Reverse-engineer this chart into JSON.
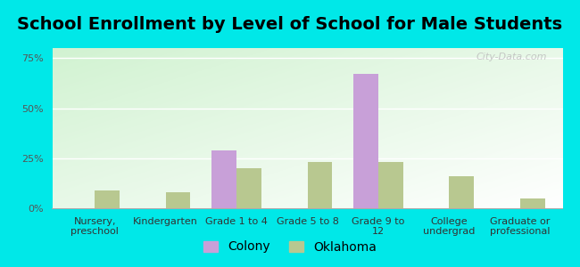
{
  "title": "School Enrollment by Level of School for Male Students",
  "categories": [
    "Nursery,\npreschool",
    "Kindergarten",
    "Grade 1 to 4",
    "Grade 5 to 8",
    "Grade 9 to\n12",
    "College\nundergrad",
    "Graduate or\nprofessional"
  ],
  "colony_values": [
    0,
    0,
    29,
    0,
    67,
    0,
    0
  ],
  "oklahoma_values": [
    9,
    8,
    20,
    23,
    23,
    16,
    5
  ],
  "colony_color": "#c8a0d8",
  "oklahoma_color": "#b8c890",
  "background_color": "#00e8e8",
  "ylim": [
    0,
    80
  ],
  "yticks": [
    0,
    25,
    50,
    75
  ],
  "ytick_labels": [
    "0%",
    "25%",
    "50%",
    "75%"
  ],
  "title_fontsize": 14,
  "tick_fontsize": 8,
  "legend_fontsize": 10,
  "bar_width": 0.35,
  "watermark": "City-Data.com"
}
